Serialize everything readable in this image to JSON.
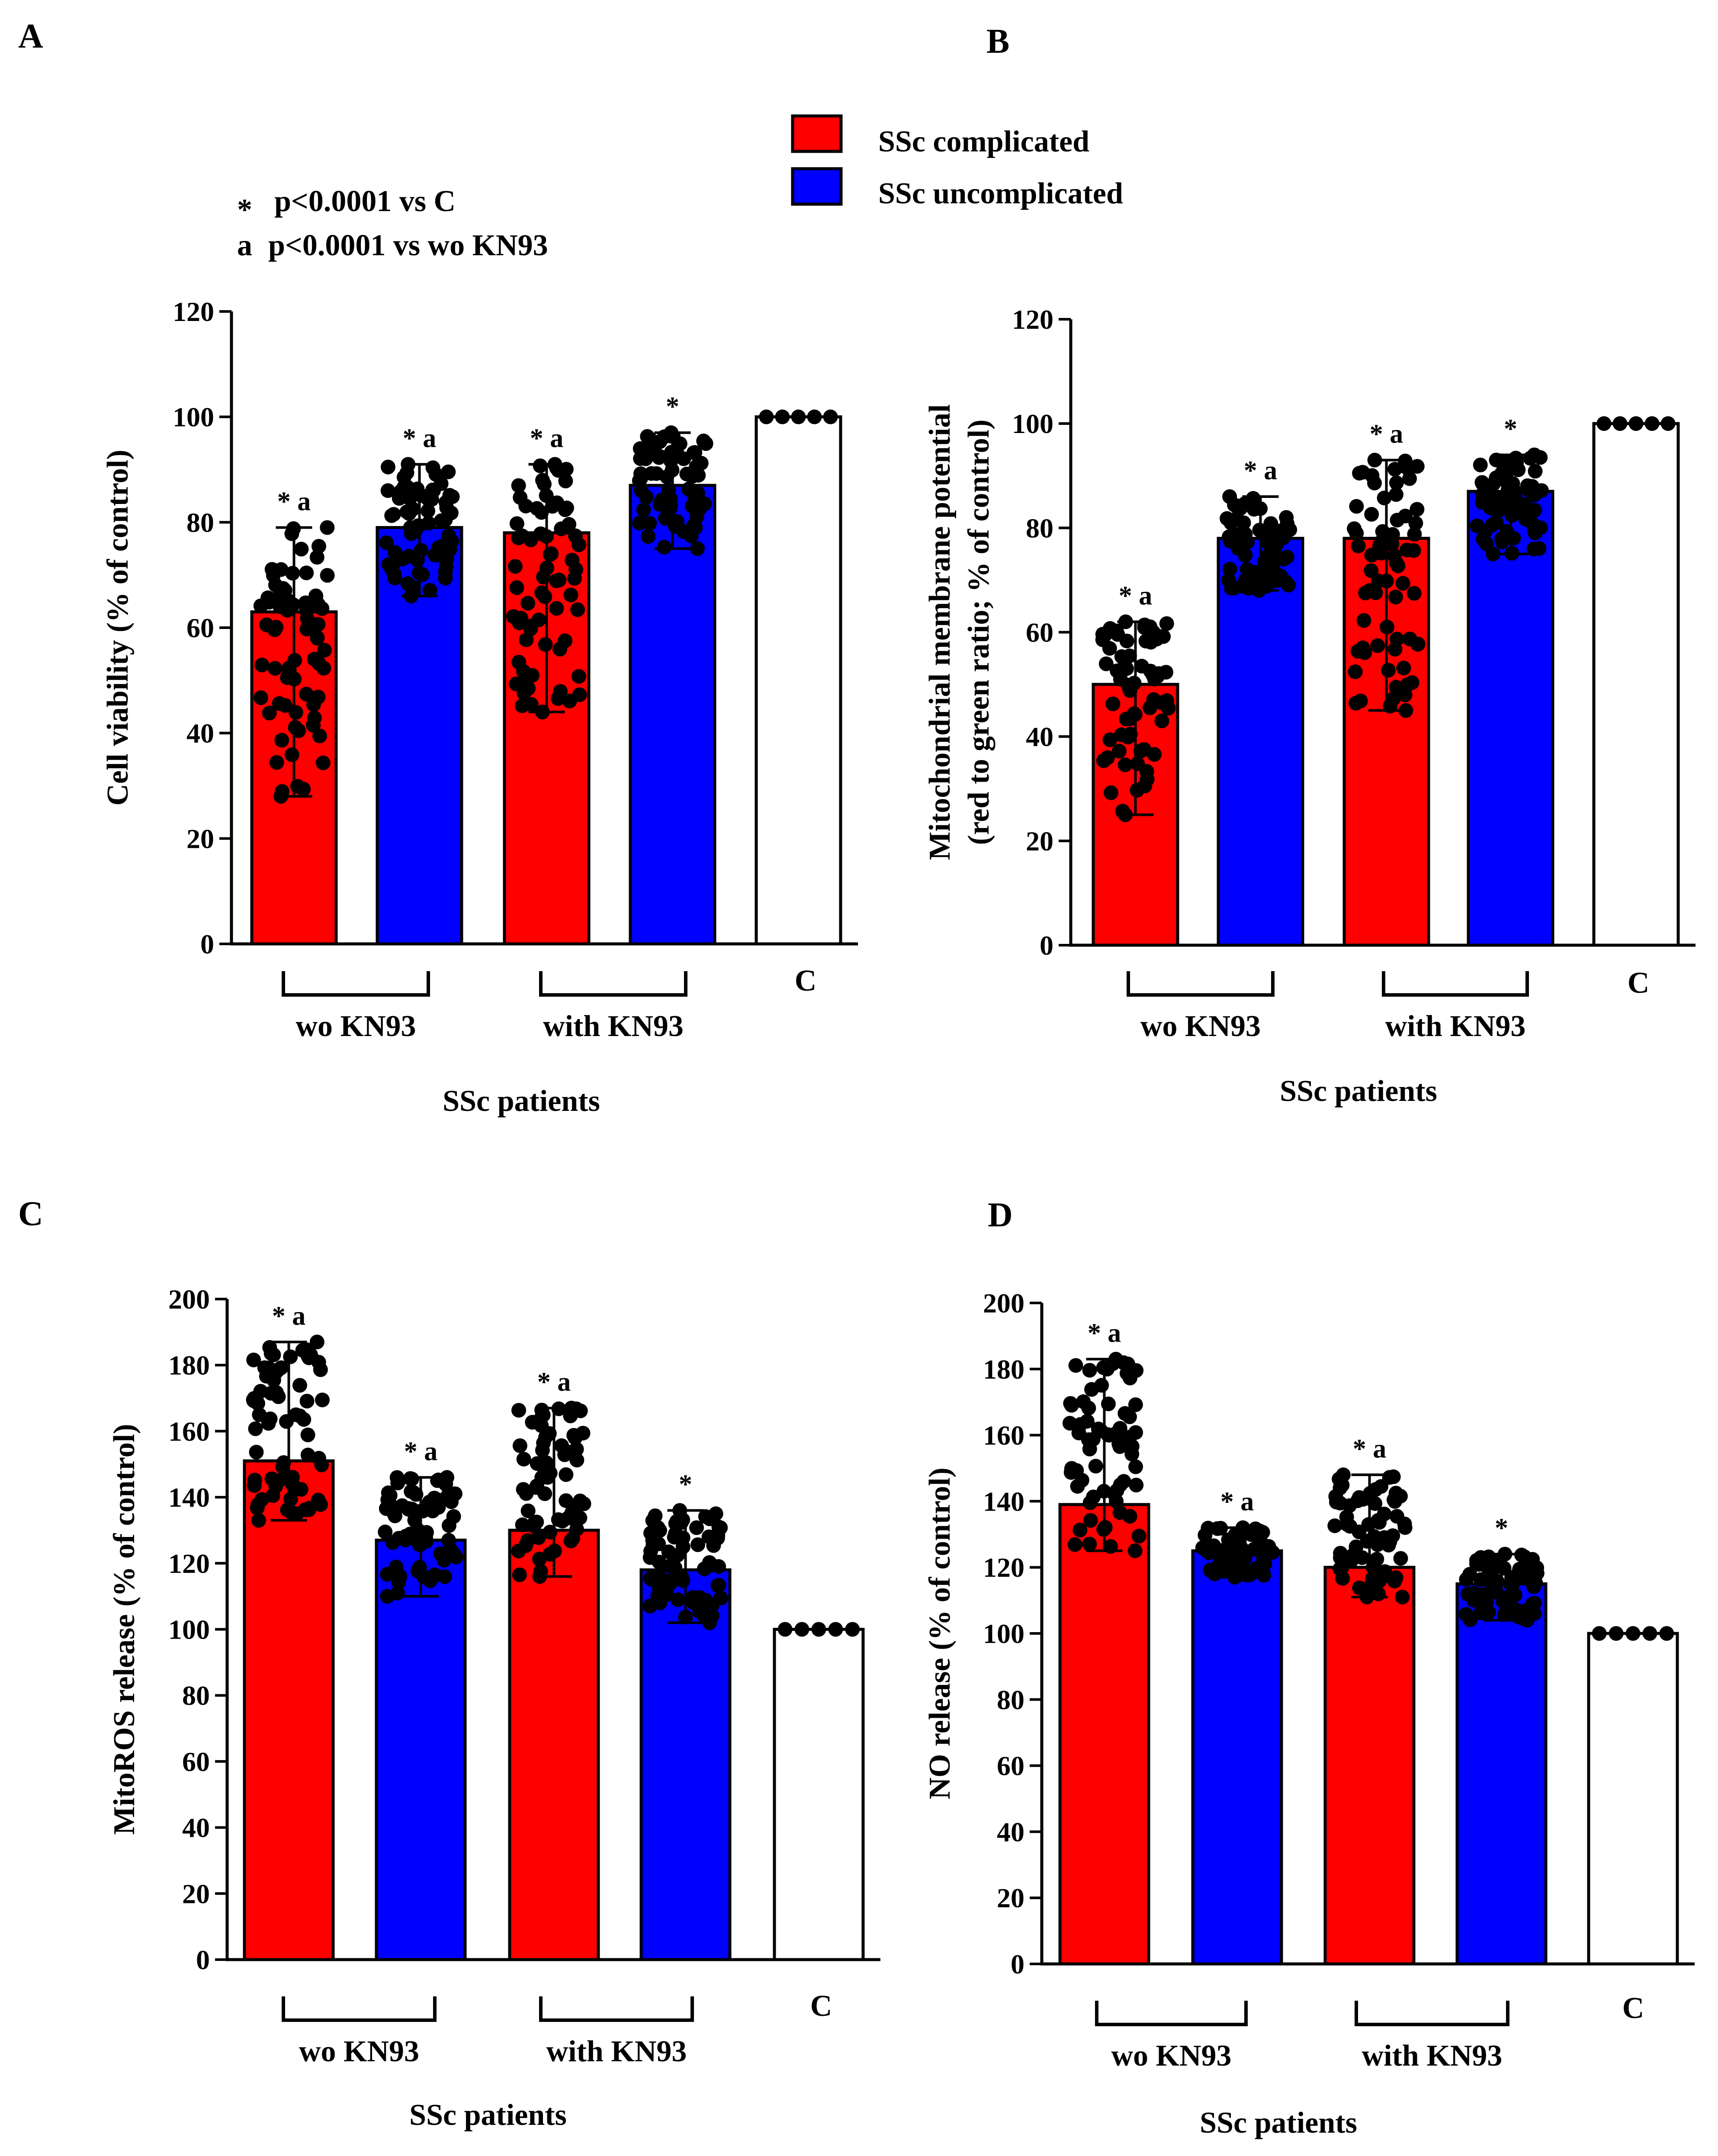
{
  "legend": {
    "entries": [
      {
        "label": "SSc complicated",
        "color": "#ff0000"
      },
      {
        "label": "SSc uncomplicated",
        "color": "#0000ff"
      }
    ]
  },
  "significance": {
    "lines": [
      {
        "symbol": "*",
        "text": "p<0.0001 vs C"
      },
      {
        "symbol": "a",
        "text": "p<0.0001 vs wo KN93"
      }
    ]
  },
  "colors": {
    "complicated": "#ff0000",
    "uncomplicated": "#0000ff",
    "control": "#ffffff"
  },
  "chart_data": [
    {
      "panel": "A",
      "type": "bar",
      "ylabel": "Cell viability (% of control)",
      "ylim": [
        0,
        120
      ],
      "yticks": [
        0,
        20,
        40,
        60,
        80,
        100,
        120
      ],
      "xlabel": "SSc patients",
      "group_labels": [
        "wo KN93",
        "with KN93",
        "C"
      ],
      "bars": [
        {
          "group": "wo KN93",
          "series": "SSc complicated",
          "value": 63,
          "min": 28,
          "max": 79,
          "annotation": "* a"
        },
        {
          "group": "wo KN93",
          "series": "SSc uncomplicated",
          "value": 79,
          "min": 66,
          "max": 91,
          "annotation": "* a"
        },
        {
          "group": "with KN93",
          "series": "SSc complicated",
          "value": 78,
          "min": 44,
          "max": 91,
          "annotation": "* a"
        },
        {
          "group": "with KN93",
          "series": "SSc uncomplicated",
          "value": 87,
          "min": 75,
          "max": 97,
          "annotation": "*"
        },
        {
          "group": "C",
          "series": "Control",
          "value": 100,
          "min": 100,
          "max": 100,
          "annotation": ""
        }
      ]
    },
    {
      "panel": "B",
      "type": "bar",
      "ylabel": "Mitochondrial membrane potential (red to green ratio; % of control)",
      "ylabel_lines": [
        "Mitochondrial membrane potential",
        "(red to green ratio; % of control)"
      ],
      "ylim": [
        0,
        120
      ],
      "yticks": [
        0,
        20,
        40,
        60,
        80,
        100,
        120
      ],
      "xlabel": "SSc patients",
      "group_labels": [
        "wo KN93",
        "with KN93",
        "C"
      ],
      "bars": [
        {
          "group": "wo KN93",
          "series": "SSc complicated",
          "value": 50,
          "min": 25,
          "max": 62,
          "annotation": "* a"
        },
        {
          "group": "wo KN93",
          "series": "SSc uncomplicated",
          "value": 78,
          "min": 68,
          "max": 86,
          "annotation": "* a"
        },
        {
          "group": "with KN93",
          "series": "SSc complicated",
          "value": 78,
          "min": 45,
          "max": 93,
          "annotation": "* a"
        },
        {
          "group": "with KN93",
          "series": "SSc uncomplicated",
          "value": 87,
          "min": 75,
          "max": 94,
          "annotation": "*"
        },
        {
          "group": "C",
          "series": "Control",
          "value": 100,
          "min": 100,
          "max": 100,
          "annotation": ""
        }
      ]
    },
    {
      "panel": "C",
      "type": "bar",
      "ylabel": "MitoROS release (% of control)",
      "ylim": [
        0,
        200
      ],
      "yticks": [
        0,
        20,
        40,
        60,
        80,
        100,
        120,
        140,
        160,
        180,
        200
      ],
      "xlabel": "SSc patients",
      "group_labels": [
        "wo KN93",
        "with KN93",
        "C"
      ],
      "bars": [
        {
          "group": "wo KN93",
          "series": "SSc complicated",
          "value": 151,
          "min": 133,
          "max": 187,
          "annotation": "* a"
        },
        {
          "group": "wo KN93",
          "series": "SSc uncomplicated",
          "value": 127,
          "min": 110,
          "max": 146,
          "annotation": "* a"
        },
        {
          "group": "with KN93",
          "series": "SSc complicated",
          "value": 130,
          "min": 116,
          "max": 167,
          "annotation": "* a"
        },
        {
          "group": "with KN93",
          "series": "SSc uncomplicated",
          "value": 118,
          "min": 102,
          "max": 136,
          "annotation": "*"
        },
        {
          "group": "C",
          "series": "Control",
          "value": 100,
          "min": 100,
          "max": 100,
          "annotation": ""
        }
      ]
    },
    {
      "panel": "D",
      "type": "bar",
      "ylabel": "NO release (% of control)",
      "ylim": [
        0,
        200
      ],
      "yticks": [
        0,
        20,
        40,
        60,
        80,
        100,
        120,
        140,
        160,
        180,
        200
      ],
      "xlabel": "SSc patients",
      "group_labels": [
        "wo KN93",
        "with KN93",
        "C"
      ],
      "bars": [
        {
          "group": "wo KN93",
          "series": "SSc complicated",
          "value": 139,
          "min": 125,
          "max": 183,
          "annotation": "* a"
        },
        {
          "group": "wo KN93",
          "series": "SSc uncomplicated",
          "value": 125,
          "min": 117,
          "max": 132,
          "annotation": "* a"
        },
        {
          "group": "with KN93",
          "series": "SSc complicated",
          "value": 120,
          "min": 111,
          "max": 148,
          "annotation": "* a"
        },
        {
          "group": "with KN93",
          "series": "SSc uncomplicated",
          "value": 115,
          "min": 104,
          "max": 124,
          "annotation": "*"
        },
        {
          "group": "C",
          "series": "Control",
          "value": 100,
          "min": 100,
          "max": 100,
          "annotation": ""
        }
      ]
    }
  ]
}
